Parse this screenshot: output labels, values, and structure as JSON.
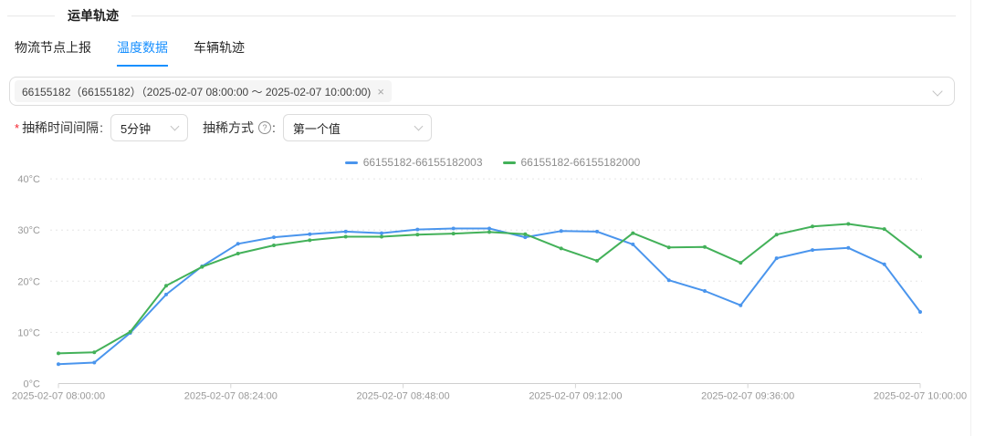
{
  "header": {
    "title": "运单轨迹"
  },
  "tabs": [
    {
      "label": "物流节点上报",
      "active": false
    },
    {
      "label": "温度数据",
      "active": true
    },
    {
      "label": "车辆轨迹",
      "active": false
    }
  ],
  "waybill_select": {
    "tag": "66155182（66155182）（2025-02-07 08:00:00 ～ 2025-02-07 10:00:00)",
    "close_icon": "×"
  },
  "filters": {
    "interval": {
      "required_mark": "*",
      "label": "抽稀时间间隔",
      "colon": ":",
      "value": "5分钟"
    },
    "method": {
      "label": "抽稀方式",
      "info_icon": "?",
      "colon": ":",
      "value": "第一个值"
    }
  },
  "chart_data": {
    "type": "line",
    "title": "",
    "legend_position": "top-center",
    "grid": "horizontal-dotted",
    "y_unit": "°C",
    "y_ticks": [
      0,
      10,
      20,
      30,
      40
    ],
    "ylim": [
      0,
      40
    ],
    "x_axis_labels": [
      "2025-02-07 08:00:00",
      "2025-02-07 08:24:00",
      "2025-02-07 08:48:00",
      "2025-02-07 09:12:00",
      "2025-02-07 09:36:00",
      "2025-02-07 10:00:00"
    ],
    "x": [
      "2025-02-07 08:00:00",
      "2025-02-07 08:05:00",
      "2025-02-07 08:10:00",
      "2025-02-07 08:15:00",
      "2025-02-07 08:20:00",
      "2025-02-07 08:25:00",
      "2025-02-07 08:30:00",
      "2025-02-07 08:35:00",
      "2025-02-07 08:40:00",
      "2025-02-07 08:45:00",
      "2025-02-07 08:50:00",
      "2025-02-07 08:55:00",
      "2025-02-07 09:00:00",
      "2025-02-07 09:05:00",
      "2025-02-07 09:10:00",
      "2025-02-07 09:15:00",
      "2025-02-07 09:20:00",
      "2025-02-07 09:25:00",
      "2025-02-07 09:30:00",
      "2025-02-07 09:35:00",
      "2025-02-07 09:40:00",
      "2025-02-07 09:45:00",
      "2025-02-07 09:50:00",
      "2025-02-07 09:55:00",
      "2025-02-07 10:00:00"
    ],
    "series": [
      {
        "name": "66155182-66155182003",
        "color": "#4a95ed",
        "values": [
          3.8,
          4.1,
          9.9,
          17.4,
          22.9,
          27.3,
          28.6,
          29.2,
          29.7,
          29.4,
          30.1,
          30.3,
          30.3,
          28.6,
          29.8,
          29.7,
          27.2,
          20.2,
          18.1,
          15.3,
          24.5,
          26.1,
          26.5,
          23.3,
          14.0
        ]
      },
      {
        "name": "66155182-66155182000",
        "color": "#43b159",
        "values": [
          5.9,
          6.1,
          10.1,
          19.1,
          22.8,
          25.4,
          27.0,
          28.0,
          28.7,
          28.7,
          29.1,
          29.3,
          29.6,
          29.2,
          26.4,
          24.0,
          29.4,
          26.6,
          26.7,
          23.6,
          29.1,
          30.7,
          31.2,
          30.2,
          24.8
        ]
      }
    ]
  }
}
